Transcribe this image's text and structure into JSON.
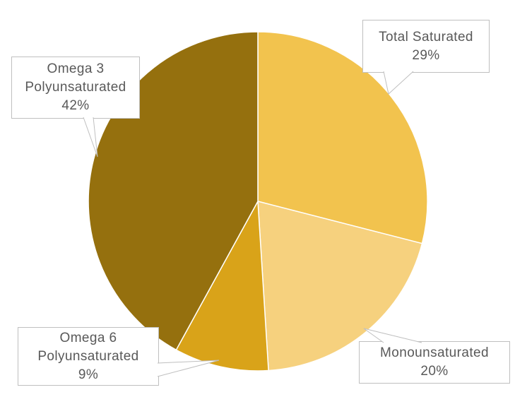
{
  "chart_data": {
    "type": "pie",
    "title": "",
    "categories": [
      "Total Saturated",
      "Monounsaturated",
      "Omega 6 Polyunsaturated",
      "Omega 3 Polyunsaturated"
    ],
    "values": [
      29,
      20,
      9,
      42
    ],
    "unit": "%",
    "colors": [
      "#F2C34E",
      "#F6D17E",
      "#D9A319",
      "#95700E"
    ],
    "start_angle_deg": 0,
    "direction": "clockwise",
    "slice_separator_color": "#FFFFFF",
    "legend": "none",
    "labels_style": "external callout boxes with leader pointers"
  },
  "callouts": {
    "saturated": {
      "line1": "Total Saturated",
      "line2": "29%"
    },
    "omega3": {
      "line1": "Omega 3",
      "line2": "Polyunsaturated",
      "line3": "42%"
    },
    "omega6": {
      "line1": "Omega 6",
      "line2": "Polyunsaturated",
      "line3": "9%"
    },
    "mono": {
      "line1": "Monounsaturated",
      "line2": "20%"
    }
  },
  "style": {
    "background": "#FFFFFF",
    "label_text_color": "#595959",
    "callout_border_color": "#BFBFBF"
  }
}
